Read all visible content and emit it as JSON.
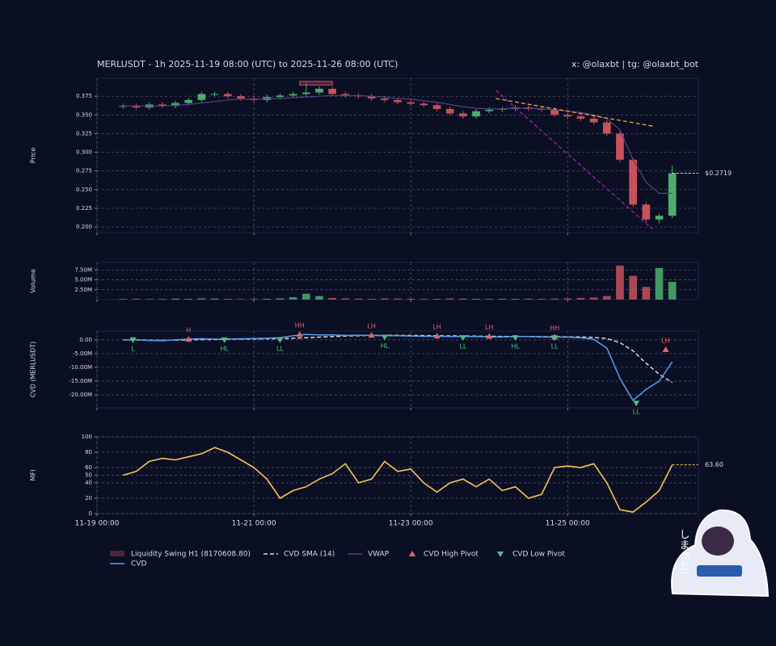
{
  "chart_data": {
    "type": "multi-panel",
    "title": "MERLUSDT - 1h 2025-11-19 08:00 (UTC) to 2025-11-26 08:00 (UTC)",
    "subtitle": "x: @olaxbt | tg: @olaxbt_bot",
    "x": [
      8,
      12,
      16,
      20,
      24,
      28,
      32,
      36,
      40,
      44,
      48,
      52,
      56,
      60,
      64,
      68,
      72,
      76,
      80,
      84,
      88,
      92,
      96,
      100,
      104,
      108,
      112,
      116,
      120,
      124,
      128,
      132,
      136,
      140,
      144,
      148,
      152,
      156,
      160,
      164,
      168,
      172,
      176
    ],
    "xlim": [
      0,
      184
    ],
    "xticks": [
      {
        "value": 0,
        "label": "11-19 00:00"
      },
      {
        "value": 48,
        "label": "11-21 00:00"
      },
      {
        "value": 96,
        "label": "11-23 00:00"
      },
      {
        "value": 144,
        "label": "11-25 00:00"
      }
    ],
    "grid": true,
    "panels": [
      {
        "type": "candlestick",
        "ylabel": "Price",
        "up_color": "#4cae6e",
        "down_color": "#c8515c",
        "open": [
          0.361,
          0.362,
          0.36,
          0.364,
          0.362,
          0.366,
          0.37,
          0.378,
          0.378,
          0.375,
          0.372,
          0.37,
          0.374,
          0.376,
          0.378,
          0.38,
          0.385,
          0.378,
          0.376,
          0.375,
          0.372,
          0.37,
          0.367,
          0.365,
          0.363,
          0.358,
          0.352,
          0.348,
          0.355,
          0.357,
          0.358,
          0.36,
          0.358,
          0.357,
          0.35,
          0.348,
          0.345,
          0.34,
          0.325,
          0.29,
          0.23,
          0.21,
          0.215
        ],
        "high": [
          0.365,
          0.365,
          0.367,
          0.367,
          0.369,
          0.373,
          0.381,
          0.381,
          0.381,
          0.378,
          0.375,
          0.377,
          0.379,
          0.381,
          0.393,
          0.388,
          0.388,
          0.381,
          0.379,
          0.378,
          0.375,
          0.373,
          0.37,
          0.368,
          0.366,
          0.361,
          0.355,
          0.358,
          0.36,
          0.361,
          0.363,
          0.363,
          0.361,
          0.36,
          0.353,
          0.351,
          0.348,
          0.343,
          0.328,
          0.293,
          0.233,
          0.218,
          0.282
        ],
        "low": [
          0.358,
          0.357,
          0.357,
          0.359,
          0.359,
          0.363,
          0.367,
          0.375,
          0.372,
          0.369,
          0.367,
          0.367,
          0.371,
          0.373,
          0.375,
          0.377,
          0.375,
          0.373,
          0.372,
          0.369,
          0.367,
          0.364,
          0.362,
          0.36,
          0.355,
          0.349,
          0.345,
          0.345,
          0.352,
          0.354,
          0.355,
          0.355,
          0.354,
          0.347,
          0.345,
          0.342,
          0.337,
          0.322,
          0.287,
          0.227,
          0.205,
          0.205,
          0.212
        ],
        "close": [
          0.362,
          0.36,
          0.364,
          0.362,
          0.366,
          0.37,
          0.378,
          0.378,
          0.375,
          0.372,
          0.37,
          0.374,
          0.376,
          0.378,
          0.38,
          0.385,
          0.378,
          0.376,
          0.375,
          0.372,
          0.37,
          0.367,
          0.365,
          0.363,
          0.358,
          0.352,
          0.348,
          0.355,
          0.357,
          0.358,
          0.36,
          0.358,
          0.357,
          0.35,
          0.348,
          0.345,
          0.34,
          0.325,
          0.29,
          0.23,
          0.21,
          0.215,
          0.2719
        ],
        "last_label": "$0.2719",
        "series": [
          {
            "name": "VWAP",
            "color": "#5a3f86",
            "values": [
              0.362,
              0.362,
              0.362,
              0.362,
              0.363,
              0.364,
              0.366,
              0.368,
              0.37,
              0.371,
              0.371,
              0.372,
              0.372,
              0.373,
              0.374,
              0.375,
              0.376,
              0.376,
              0.376,
              0.375,
              0.374,
              0.372,
              0.371,
              0.369,
              0.367,
              0.364,
              0.361,
              0.359,
              0.358,
              0.358,
              0.359,
              0.359,
              0.358,
              0.357,
              0.355,
              0.353,
              0.35,
              0.345,
              0.33,
              0.29,
              0.26,
              0.245,
              0.245
            ]
          }
        ],
        "trendlines": [
          {
            "color": "#f0a830",
            "x": [
              122,
              170
            ],
            "y": [
              0.372,
              0.335
            ]
          },
          {
            "color": "#9b1fb0",
            "x": [
              122,
              170
            ],
            "y": [
              0.383,
              0.197
            ]
          }
        ],
        "liquidity_swing": {
          "name": "Liquidity Swing H1 (8170608.80)",
          "color": "#c8515c",
          "x": [
            62,
            72
          ],
          "y": [
            0.39,
            0.395
          ]
        },
        "ylim": [
          0.1925,
          0.399
        ],
        "yticks": [
          {
            "value": 0.2,
            "label": "0.200"
          },
          0.225,
          {
            "value": 0.25,
            "label": "0.250"
          },
          0.275,
          {
            "value": 0.3,
            "label": "0.300"
          },
          0.325,
          {
            "value": 0.35,
            "label": "0.350"
          },
          0.375
        ]
      },
      {
        "type": "bar",
        "ylabel": "Volume",
        "values": [
          150000,
          200000,
          120000,
          180000,
          250000,
          200000,
          300000,
          250000,
          200000,
          150000,
          180000,
          220000,
          300000,
          600000,
          1500000,
          900000,
          400000,
          300000,
          250000,
          200000,
          300000,
          250000,
          200000,
          180000,
          200000,
          300000,
          250000,
          200000,
          150000,
          200000,
          180000,
          220000,
          200000,
          250000,
          300000,
          400000,
          500000,
          900000,
          8600000,
          6000000,
          3200000,
          8000000,
          4500000
        ],
        "ylim": [
          0,
          9400000
        ],
        "yticks": [
          {
            "value": 2500000,
            "label": "2.50M"
          },
          {
            "value": 5000000,
            "label": "5.00M"
          },
          {
            "value": 7500000,
            "label": "7.50M"
          }
        ]
      },
      {
        "type": "line",
        "ylabel": "CVD (MERLUSDT)",
        "series": [
          {
            "name": "CVD",
            "color": "#5b9ee8",
            "values": [
              0,
              0,
              -200000,
              -300000,
              0,
              300000,
              400000,
              300000,
              300000,
              400000,
              500000,
              600000,
              800000,
              1500000,
              2000000,
              1800000,
              1800000,
              1600000,
              1700000,
              1600000,
              1500000,
              1500000,
              1400000,
              1300000,
              1300000,
              1200000,
              1200000,
              1200000,
              1100000,
              1100000,
              1200000,
              1200000,
              1100000,
              1000000,
              1000000,
              800000,
              200000,
              -3000000,
              -14000000,
              -22000000,
              -18000000,
              -15000000,
              -8000000
            ]
          },
          {
            "name": "CVD SMA (14)",
            "color": "#d8dbe6",
            "dashed": true,
            "values": [
              0,
              0,
              -100000,
              -150000,
              -100000,
              0,
              100000,
              150000,
              200000,
              250000,
              300000,
              400000,
              450000,
              600000,
              800000,
              1000000,
              1200000,
              1400000,
              1500000,
              1600000,
              1650000,
              1650000,
              1600000,
              1550000,
              1500000,
              1450000,
              1400000,
              1350000,
              1300000,
              1250000,
              1200000,
              1200000,
              1150000,
              1150000,
              1100000,
              1050000,
              900000,
              500000,
              -1000000,
              -4000000,
              -8500000,
              -12500000,
              -15500000
            ]
          }
        ],
        "pivots": [
          {
            "name": "CVD High Pivot",
            "color": "#e06666",
            "marker": "up",
            "points": [
              {
                "x": 28,
                "y": 200000,
                "label": "H"
              },
              {
                "x": 62,
                "y": 2000000,
                "label": "HH"
              },
              {
                "x": 84,
                "y": 1700000,
                "label": "LH"
              },
              {
                "x": 104,
                "y": 1400000,
                "label": "LH"
              },
              {
                "x": 120,
                "y": 1300000,
                "label": "LH"
              },
              {
                "x": 140,
                "y": 1000000,
                "label": "HH"
              },
              {
                "x": 174,
                "y": -3500000,
                "label": "LH"
              }
            ]
          },
          {
            "name": "CVD Low Pivot",
            "color": "#4fbf85",
            "marker": "down",
            "points": [
              {
                "x": 11,
                "y": 0,
                "label": "L"
              },
              {
                "x": 39,
                "y": 0,
                "label": "HL"
              },
              {
                "x": 56,
                "y": 0,
                "label": "LL"
              },
              {
                "x": 88,
                "y": 1000000,
                "label": "HL"
              },
              {
                "x": 112,
                "y": 800000,
                "label": "LL"
              },
              {
                "x": 128,
                "y": 800000,
                "label": "HL"
              },
              {
                "x": 140,
                "y": 800000,
                "label": "LL"
              },
              {
                "x": 165,
                "y": -23000000,
                "label": "LL"
              }
            ]
          }
        ],
        "ylim": [
          -24700000,
          3200000
        ],
        "yticks": [
          {
            "value": 0,
            "label": "0.00"
          },
          {
            "value": -5000000,
            "label": "-5.00M"
          },
          {
            "value": -10000000,
            "label": "-10.00M"
          },
          {
            "value": -15000000,
            "label": "-15.00M"
          },
          {
            "value": -20000000,
            "label": "-20.00M"
          }
        ]
      },
      {
        "type": "line",
        "ylabel": "MFI",
        "color": "#f6c453",
        "values": [
          50,
          55,
          68,
          72,
          70,
          74,
          78,
          86,
          80,
          70,
          60,
          45,
          20,
          30,
          35,
          45,
          52,
          65,
          40,
          45,
          68,
          55,
          58,
          40,
          28,
          40,
          45,
          35,
          45,
          30,
          35,
          20,
          25,
          60,
          62,
          60,
          65,
          40,
          5,
          2,
          15,
          30,
          63.6
        ],
        "last_label": "63.60",
        "ylim": [
          0,
          100
        ],
        "yticks": [
          0,
          20,
          40,
          50,
          60,
          80,
          100
        ]
      }
    ]
  },
  "sticker_text": "しまった!"
}
